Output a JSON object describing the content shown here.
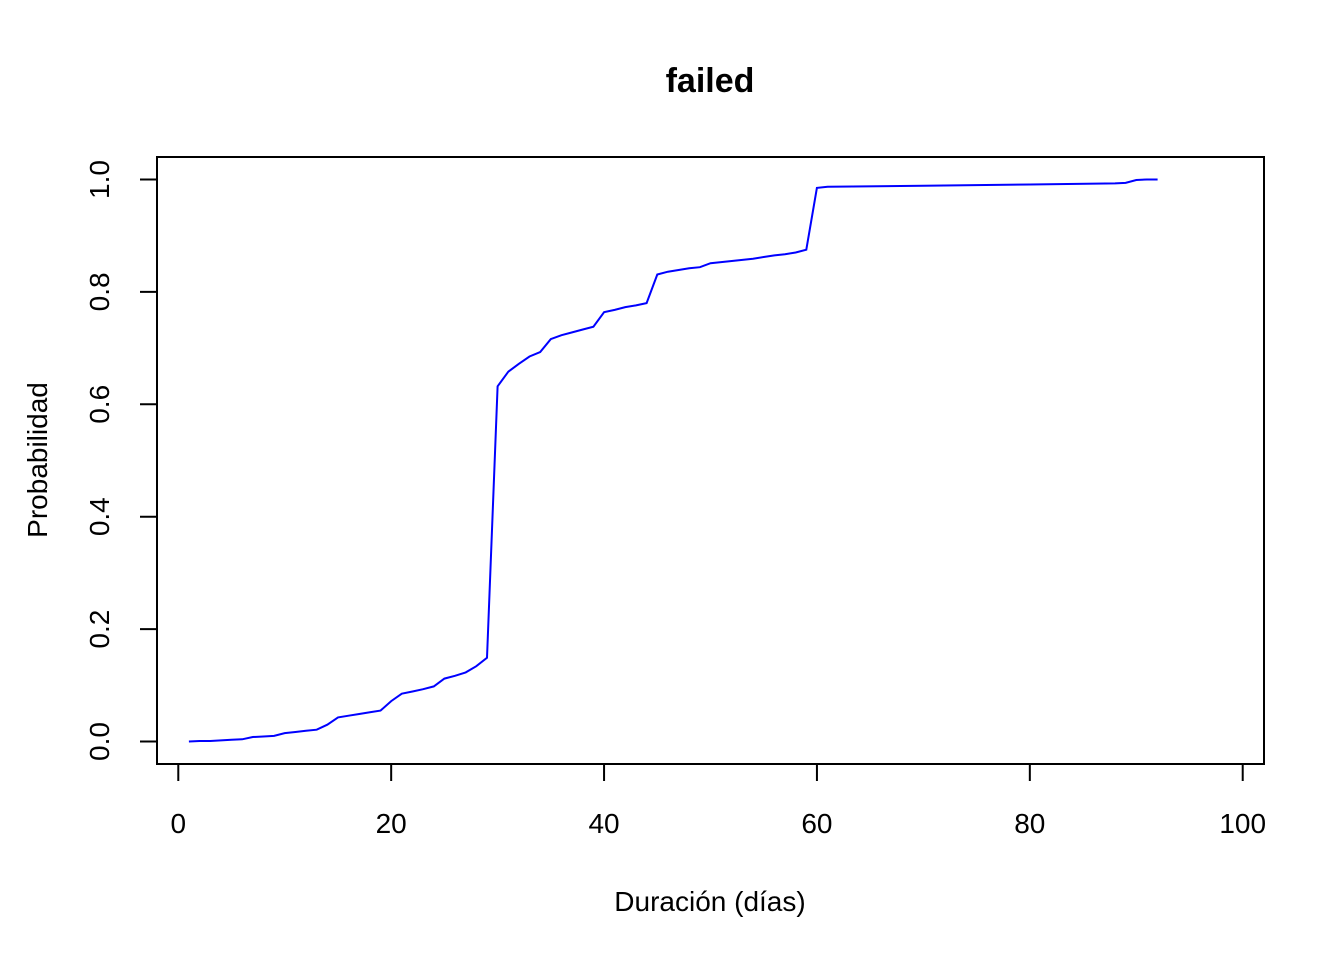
{
  "chart_data": {
    "type": "line",
    "title": "failed",
    "xlabel": "Duración (días)",
    "ylabel": "Probabilidad",
    "xlim": [
      -2,
      102
    ],
    "ylim": [
      -0.04,
      1.04
    ],
    "xticks": [
      0,
      20,
      40,
      60,
      80,
      100
    ],
    "xtick_labels": [
      "0",
      "20",
      "40",
      "60",
      "80",
      "100"
    ],
    "yticks": [
      0.0,
      0.2,
      0.4,
      0.6,
      0.8,
      1.0
    ],
    "ytick_labels": [
      "0.0",
      "0.2",
      "0.4",
      "0.6",
      "0.8",
      "1.0"
    ],
    "grid": false,
    "color": "#0000ff",
    "series": [
      {
        "x": [
          1,
          2,
          3,
          4,
          5,
          6,
          7,
          8,
          9,
          10,
          11,
          12,
          13,
          14,
          15,
          16,
          17,
          18,
          19,
          20,
          21,
          22,
          23,
          24,
          25,
          26,
          27,
          28,
          29,
          30,
          31,
          32,
          33,
          34,
          35,
          36,
          37,
          38,
          39,
          40,
          41,
          42,
          43,
          44,
          45,
          46,
          47,
          48,
          49,
          50,
          51,
          52,
          53,
          54,
          55,
          56,
          57,
          58,
          59,
          60,
          61,
          70,
          80,
          88,
          89,
          90,
          91,
          92
        ],
        "y": [
          0.0,
          0.001,
          0.001,
          0.002,
          0.003,
          0.004,
          0.008,
          0.009,
          0.01,
          0.015,
          0.017,
          0.019,
          0.021,
          0.03,
          0.043,
          0.046,
          0.049,
          0.052,
          0.055,
          0.072,
          0.085,
          0.089,
          0.093,
          0.098,
          0.112,
          0.117,
          0.123,
          0.134,
          0.149,
          0.632,
          0.658,
          0.672,
          0.685,
          0.693,
          0.716,
          0.723,
          0.728,
          0.733,
          0.738,
          0.764,
          0.768,
          0.773,
          0.776,
          0.78,
          0.831,
          0.836,
          0.839,
          0.842,
          0.844,
          0.851,
          0.853,
          0.855,
          0.857,
          0.859,
          0.862,
          0.865,
          0.867,
          0.87,
          0.875,
          0.985,
          0.987,
          0.989,
          0.991,
          0.993,
          0.994,
          0.999,
          1.0,
          1.0
        ]
      }
    ]
  }
}
